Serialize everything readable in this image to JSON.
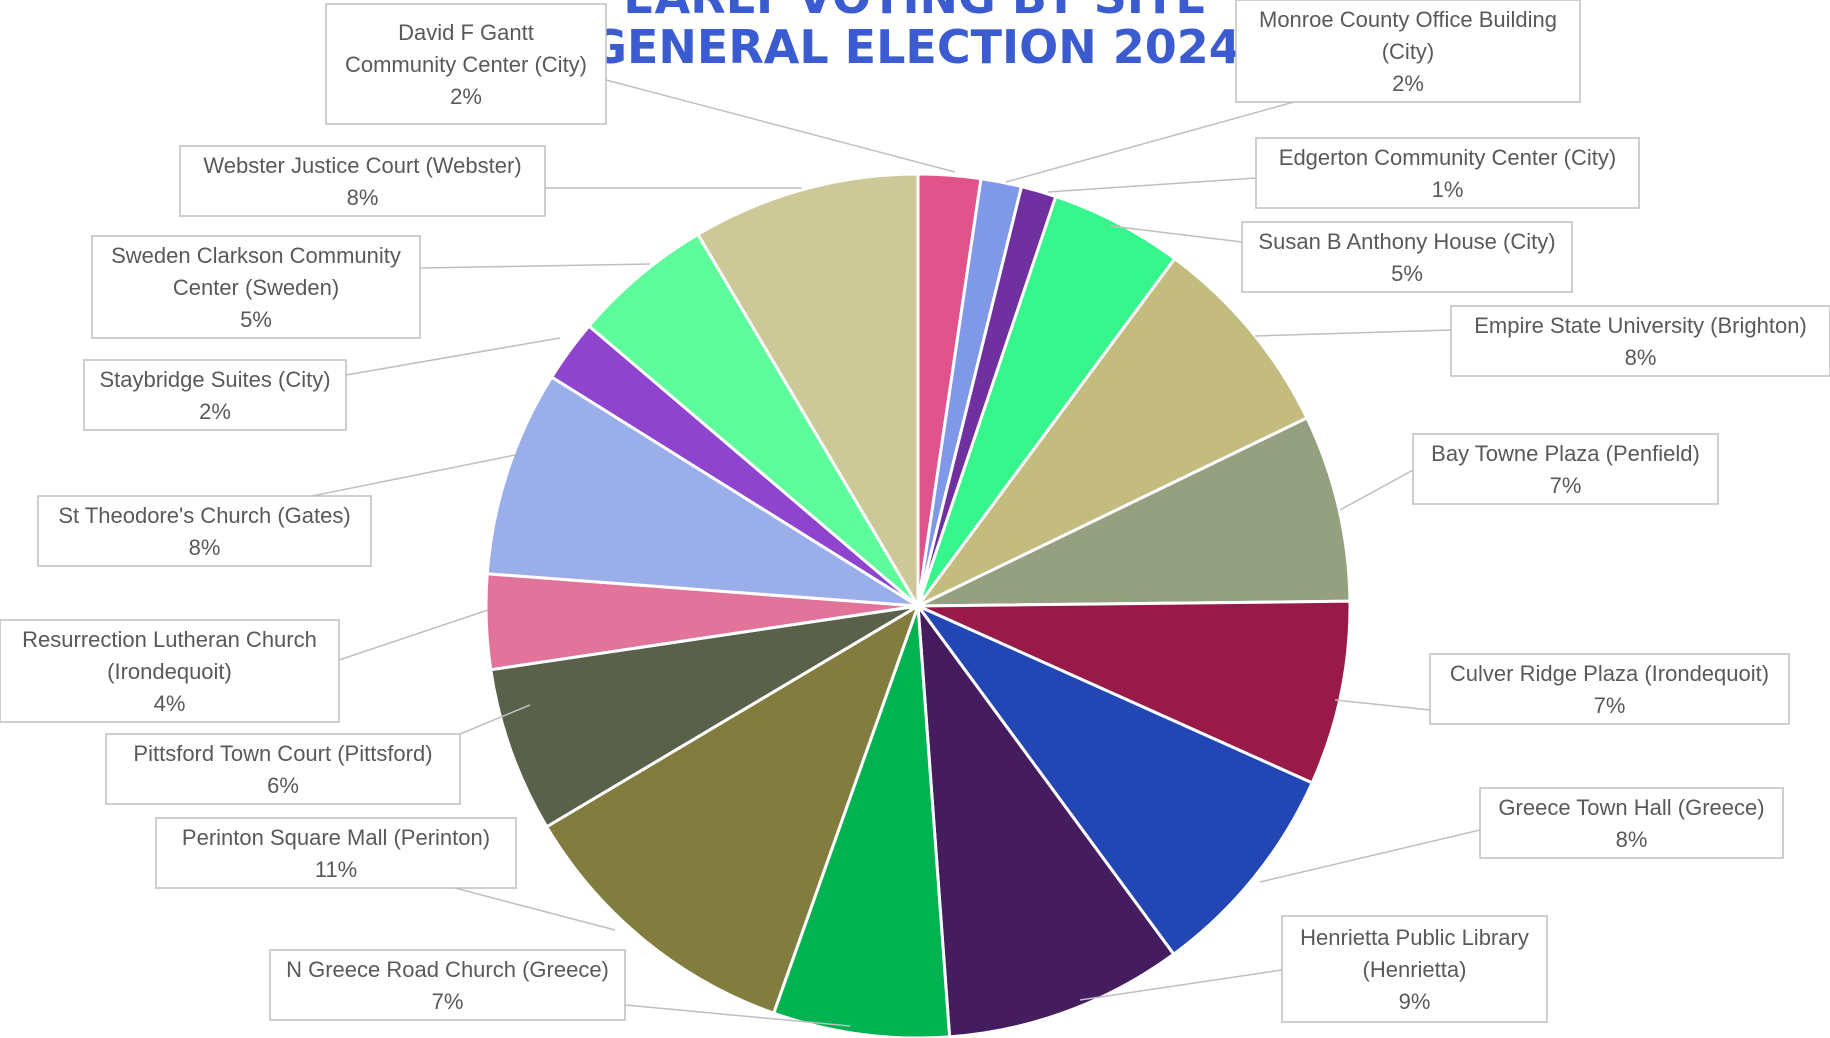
{
  "chart_data": {
    "type": "pie",
    "title": "EARLY VOTING BY SITE",
    "subtitle": "GENERAL ELECTION 2024",
    "slices": [
      {
        "name": "David F Gantt Community Center (City)",
        "lines": [
          "David F Gantt",
          "Community Center (City)"
        ],
        "percent_label": "2%",
        "value": 2.3,
        "color": "#e0538a"
      },
      {
        "name": "Monroe County Office Building (City)",
        "lines": [
          "Monroe County Office Building",
          "(City)"
        ],
        "percent_label": "2%",
        "value": 1.5,
        "color": "#8098e8"
      },
      {
        "name": "Edgerton Community Center (City)",
        "lines": [
          "Edgerton Community Center (City)"
        ],
        "percent_label": "1%",
        "value": 1.3,
        "color": "#7030a0"
      },
      {
        "name": "Susan B Anthony House (City)",
        "lines": [
          "Susan B Anthony House (City)"
        ],
        "percent_label": "5%",
        "value": 4.9,
        "color": "#36f58c"
      },
      {
        "name": "Empire State University (Brighton)",
        "lines": [
          "Empire State University (Brighton)"
        ],
        "percent_label": "8%",
        "value": 7.6,
        "color": "#c3bc7e"
      },
      {
        "name": "Bay Towne Plaza (Penfield)",
        "lines": [
          "Bay Towne Plaza (Penfield)"
        ],
        "percent_label": "7%",
        "value": 6.9,
        "color": "#95a080"
      },
      {
        "name": "Culver Ridge Plaza (Irondequoit)",
        "lines": [
          "Culver Ridge Plaza (Irondequoit)"
        ],
        "percent_label": "7%",
        "value": 6.8,
        "color": "#991a48"
      },
      {
        "name": "Greece Town Hall (Greece)",
        "lines": [
          "Greece Town Hall (Greece)"
        ],
        "percent_label": "8%",
        "value": 8.1,
        "color": "#2247b5"
      },
      {
        "name": "Henrietta Public Library (Henrietta)",
        "lines": [
          "Henrietta Public Library",
          "(Henrietta)"
        ],
        "percent_label": "9%",
        "value": 8.8,
        "color": "#451c5e"
      },
      {
        "name": "N Greece Road Church (Greece)",
        "lines": [
          "N Greece Road Church (Greece)"
        ],
        "percent_label": "7%",
        "value": 6.5,
        "color": "#00b350"
      },
      {
        "name": "Perinton Square Mall (Perinton)",
        "lines": [
          "Perinton Square Mall (Perinton)"
        ],
        "percent_label": "11%",
        "value": 10.9,
        "color": "#837c3f"
      },
      {
        "name": "Pittsford Town Court (Pittsford)",
        "lines": [
          "Pittsford Town Court (Pittsford)"
        ],
        "percent_label": "6%",
        "value": 6.1,
        "color": "#5a614a"
      },
      {
        "name": "Resurrection Lutheran Church (Irondequoit)",
        "lines": [
          "Resurrection Lutheran Church",
          "(Irondequoit)"
        ],
        "percent_label": "4%",
        "value": 3.5,
        "color": "#e2739b"
      },
      {
        "name": "St Theodore's Church (Gates)",
        "lines": [
          "St Theodore's Church (Gates)"
        ],
        "percent_label": "8%",
        "value": 7.6,
        "color": "#9aaeea"
      },
      {
        "name": "Staybridge Suites (City)",
        "lines": [
          "Staybridge Suites (City)"
        ],
        "percent_label": "2%",
        "value": 2.3,
        "color": "#8e44cc"
      },
      {
        "name": "Sweden Clarkson Community Center (Sweden)",
        "lines": [
          "Sweden Clarkson Community",
          "Center (Sweden)"
        ],
        "percent_label": "5%",
        "value": 5.2,
        "color": "#5efb9d"
      },
      {
        "name": "Webster Justice Court (Webster)",
        "lines": [
          "Webster Justice Court (Webster)"
        ],
        "percent_label": "8%",
        "value": 8.4,
        "color": "#cdc898"
      }
    ],
    "legend": "none",
    "label_style": "callout boxes with leader lines",
    "colors": {
      "title": "#3b5bd0",
      "label_text": "#595959",
      "label_border": "#bfbfbf",
      "leader_line": "#bfbfbf"
    }
  }
}
